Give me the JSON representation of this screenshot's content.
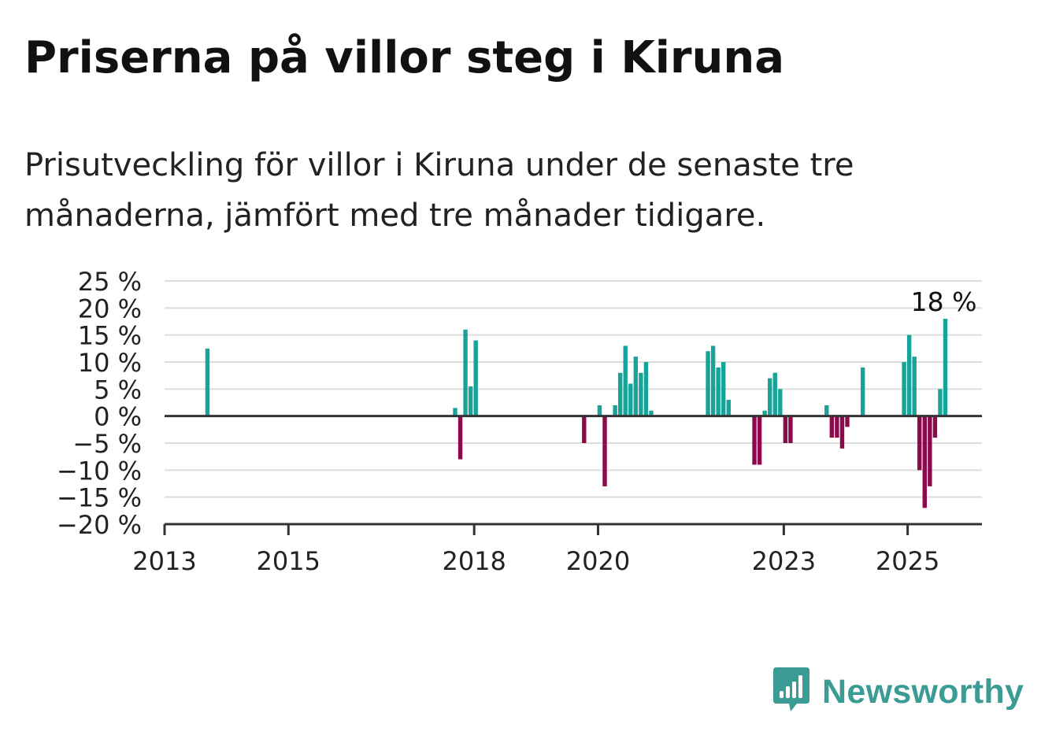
{
  "title": "Priserna på villor steg i Kiruna",
  "subtitle": "Prisutveckling för villor i Kiruna under de senaste tre månaderna, jämfört med tre månader tidigare.",
  "brand": {
    "name": "Newsworthy",
    "icon": "newsworthy-logo-icon",
    "color": "#3a9c95"
  },
  "colors": {
    "positive": "#17a398",
    "negative": "#8c0a4b",
    "grid": "#dddddd",
    "axis": "#333333"
  },
  "chart_data": {
    "type": "bar",
    "title": "Priserna på villor steg i Kiruna",
    "xlabel": "",
    "ylabel": "",
    "ylim": [
      -20,
      25
    ],
    "y_ticks": [
      25,
      20,
      15,
      10,
      5,
      0,
      -5,
      -10,
      -15,
      -20
    ],
    "y_tick_labels": [
      "25 %",
      "20 %",
      "15 %",
      "10 %",
      "5 %",
      "0 %",
      "−5 %",
      "−10 %",
      "−15 %",
      "−20 %"
    ],
    "x_ticks": [
      2013,
      2015,
      2018,
      2020,
      2023,
      2025
    ],
    "x_tick_labels": [
      "2013",
      "2015",
      "2018",
      "2020",
      "2023",
      "2025"
    ],
    "grid": true,
    "legend": "none",
    "annotation": {
      "text": "18 %",
      "target": "last"
    },
    "points": [
      {
        "date": "2013-09",
        "value": 12.5
      },
      {
        "date": "2017-09",
        "value": 1.5
      },
      {
        "date": "2017-10",
        "value": -8
      },
      {
        "date": "2017-11",
        "value": 16
      },
      {
        "date": "2017-12",
        "value": 5.5
      },
      {
        "date": "2018-01",
        "value": 14
      },
      {
        "date": "2019-10",
        "value": -5
      },
      {
        "date": "2020-01",
        "value": 2
      },
      {
        "date": "2020-02",
        "value": -13
      },
      {
        "date": "2020-04",
        "value": 2
      },
      {
        "date": "2020-05",
        "value": 8
      },
      {
        "date": "2020-06",
        "value": 13
      },
      {
        "date": "2020-07",
        "value": 6
      },
      {
        "date": "2020-08",
        "value": 11
      },
      {
        "date": "2020-09",
        "value": 8
      },
      {
        "date": "2020-10",
        "value": 10
      },
      {
        "date": "2020-11",
        "value": 1
      },
      {
        "date": "2021-10",
        "value": 12
      },
      {
        "date": "2021-11",
        "value": 13
      },
      {
        "date": "2021-12",
        "value": 9
      },
      {
        "date": "2022-01",
        "value": 10
      },
      {
        "date": "2022-02",
        "value": 3
      },
      {
        "date": "2022-07",
        "value": -9
      },
      {
        "date": "2022-08",
        "value": -9
      },
      {
        "date": "2022-09",
        "value": 1
      },
      {
        "date": "2022-10",
        "value": 7
      },
      {
        "date": "2022-11",
        "value": 8
      },
      {
        "date": "2022-12",
        "value": 5
      },
      {
        "date": "2023-01",
        "value": -5
      },
      {
        "date": "2023-02",
        "value": -5
      },
      {
        "date": "2023-09",
        "value": 2
      },
      {
        "date": "2023-10",
        "value": -4
      },
      {
        "date": "2023-11",
        "value": -4
      },
      {
        "date": "2023-12",
        "value": -6
      },
      {
        "date": "2024-01",
        "value": -2
      },
      {
        "date": "2024-04",
        "value": 9
      },
      {
        "date": "2024-12",
        "value": 10
      },
      {
        "date": "2025-01",
        "value": 15
      },
      {
        "date": "2025-02",
        "value": 11
      },
      {
        "date": "2025-03",
        "value": -10
      },
      {
        "date": "2025-04",
        "value": -17
      },
      {
        "date": "2025-05",
        "value": -13
      },
      {
        "date": "2025-06",
        "value": -4
      },
      {
        "date": "2025-07",
        "value": 5
      },
      {
        "date": "2025-08",
        "value": 18
      }
    ]
  }
}
